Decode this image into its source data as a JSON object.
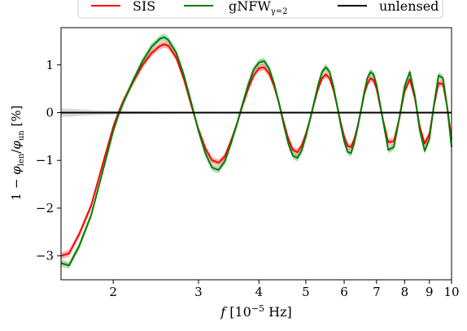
{
  "chart_data": {
    "type": "line",
    "xlabel": "f [10⁻⁵ Hz]",
    "ylabel": "1 − φ_len / φ_un [%]",
    "x_scale": "log",
    "xlim": [
      1.56,
      10
    ],
    "ylim": [
      -3.5,
      1.78
    ],
    "x_ticks": [
      2,
      3,
      4,
      5,
      6,
      7,
      8,
      9,
      10
    ],
    "x_tick_labels": [
      "2",
      "3",
      "4",
      "5",
      "6",
      "7",
      "8",
      "9",
      "10"
    ],
    "y_ticks": [
      -3,
      -2,
      -1,
      0,
      1
    ],
    "y_tick_labels": [
      "−3",
      "−2",
      "−1",
      "0",
      "1"
    ],
    "grid": false,
    "legend": {
      "placement": "top",
      "entries": [
        {
          "label": "SIS",
          "color": "#ff0000"
        },
        {
          "label": "gNFW",
          "subscript": "γ=2",
          "color": "#008000"
        },
        {
          "label": "unlensed",
          "color": "#000000"
        }
      ]
    },
    "series": [
      {
        "name": "SIS",
        "color": "#ff0000",
        "band": 0.07,
        "x": [
          1.56,
          1.62,
          1.7,
          1.8,
          1.9,
          2.0,
          2.05,
          2.1,
          2.2,
          2.3,
          2.4,
          2.5,
          2.55,
          2.6,
          2.7,
          2.8,
          2.9,
          3.0,
          3.1,
          3.2,
          3.3,
          3.4,
          3.5,
          3.6,
          3.7,
          3.8,
          3.9,
          4.0,
          4.1,
          4.2,
          4.3,
          4.4,
          4.5,
          4.6,
          4.7,
          4.8,
          4.9,
          5.0,
          5.1,
          5.2,
          5.3,
          5.4,
          5.5,
          5.6,
          5.7,
          5.8,
          5.9,
          6.0,
          6.1,
          6.2,
          6.3,
          6.4,
          6.5,
          6.6,
          6.7,
          6.8,
          6.9,
          7.0,
          7.2,
          7.4,
          7.6,
          7.8,
          8.0,
          8.2,
          8.4,
          8.6,
          8.8,
          9.0,
          9.2,
          9.4,
          9.6,
          9.8,
          10.0
        ],
        "y": [
          -3.0,
          -2.95,
          -2.55,
          -1.95,
          -1.1,
          -0.3,
          0.0,
          0.25,
          0.65,
          1.0,
          1.25,
          1.4,
          1.43,
          1.4,
          1.15,
          0.7,
          0.15,
          -0.35,
          -0.75,
          -1.0,
          -1.05,
          -0.92,
          -0.6,
          -0.25,
          0.15,
          0.5,
          0.78,
          0.93,
          0.95,
          0.82,
          0.55,
          0.2,
          -0.2,
          -0.55,
          -0.78,
          -0.83,
          -0.7,
          -0.45,
          -0.15,
          0.2,
          0.5,
          0.72,
          0.8,
          0.72,
          0.48,
          0.15,
          -0.2,
          -0.5,
          -0.7,
          -0.72,
          -0.55,
          -0.28,
          0.05,
          0.38,
          0.6,
          0.72,
          0.68,
          0.5,
          -0.1,
          -0.62,
          -0.6,
          -0.12,
          0.45,
          0.7,
          0.3,
          -0.3,
          -0.65,
          -0.45,
          0.15,
          0.62,
          0.6,
          0.1,
          -0.55
        ]
      },
      {
        "name": "gNFWγ=2",
        "color": "#008000",
        "band": 0.07,
        "x": [
          1.56,
          1.62,
          1.7,
          1.8,
          1.9,
          2.0,
          2.05,
          2.1,
          2.2,
          2.3,
          2.4,
          2.5,
          2.55,
          2.6,
          2.7,
          2.8,
          2.9,
          3.0,
          3.1,
          3.2,
          3.3,
          3.4,
          3.5,
          3.6,
          3.7,
          3.8,
          3.9,
          4.0,
          4.1,
          4.2,
          4.3,
          4.4,
          4.5,
          4.6,
          4.7,
          4.8,
          4.9,
          5.0,
          5.1,
          5.2,
          5.3,
          5.4,
          5.5,
          5.6,
          5.7,
          5.8,
          5.9,
          6.0,
          6.1,
          6.2,
          6.3,
          6.4,
          6.5,
          6.6,
          6.7,
          6.8,
          6.9,
          7.0,
          7.2,
          7.4,
          7.6,
          7.8,
          8.0,
          8.2,
          8.4,
          8.6,
          8.8,
          9.0,
          9.2,
          9.4,
          9.6,
          9.8,
          10.0
        ],
        "y": [
          -3.15,
          -3.2,
          -2.8,
          -2.15,
          -1.25,
          -0.38,
          -0.05,
          0.22,
          0.68,
          1.08,
          1.38,
          1.55,
          1.58,
          1.52,
          1.25,
          0.78,
          0.2,
          -0.38,
          -0.85,
          -1.15,
          -1.2,
          -1.02,
          -0.65,
          -0.25,
          0.18,
          0.58,
          0.9,
          1.05,
          1.08,
          0.92,
          0.6,
          0.2,
          -0.25,
          -0.65,
          -0.9,
          -0.95,
          -0.8,
          -0.5,
          -0.15,
          0.22,
          0.58,
          0.85,
          0.95,
          0.85,
          0.55,
          0.15,
          -0.25,
          -0.6,
          -0.82,
          -0.85,
          -0.62,
          -0.3,
          0.05,
          0.42,
          0.72,
          0.85,
          0.8,
          0.58,
          -0.1,
          -0.78,
          -0.72,
          -0.12,
          0.55,
          0.85,
          0.35,
          -0.38,
          -0.8,
          -0.55,
          0.18,
          0.78,
          0.72,
          0.1,
          -0.72
        ]
      },
      {
        "name": "unlensed",
        "color": "#000000",
        "x": [
          1.56,
          10.0
        ],
        "y": [
          0,
          0
        ],
        "band_color": "#bdbdbd",
        "band_x": [
          1.56,
          1.7,
          1.85,
          2.0,
          2.2,
          2.5,
          3.0,
          10.0
        ],
        "band_half_width": [
          0.09,
          0.07,
          0.05,
          0.04,
          0.03,
          0.02,
          0.015,
          0.01
        ]
      }
    ]
  }
}
